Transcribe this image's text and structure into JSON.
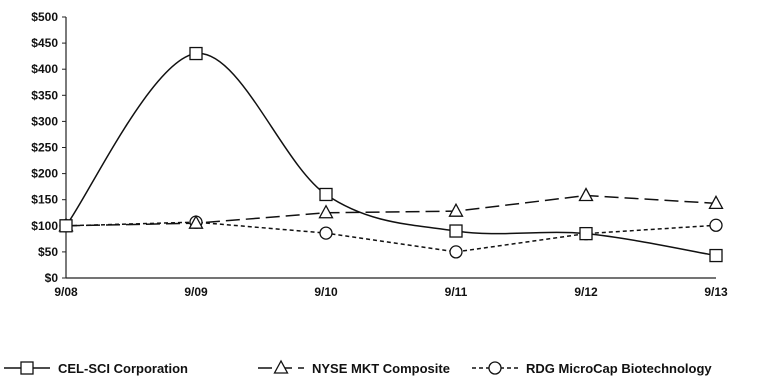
{
  "chart_data": {
    "type": "line",
    "x": [
      "9/08",
      "9/09",
      "9/10",
      "9/11",
      "9/12",
      "9/13"
    ],
    "y_ticks": [
      "$0",
      "$50",
      "$100",
      "$150",
      "$200",
      "$250",
      "$300",
      "$350",
      "$400",
      "$450",
      "$500"
    ],
    "ylim": [
      0,
      500
    ],
    "grid": false,
    "legend_position": "bottom",
    "series": [
      {
        "name": "CEL-SCI Corporation",
        "values": [
          100,
          430,
          160,
          90,
          85,
          43
        ],
        "marker": "square",
        "dash": "solid",
        "smooth": true
      },
      {
        "name": "NYSE MKT Composite",
        "values": [
          100,
          105,
          125,
          128,
          158,
          143
        ],
        "marker": "triangle",
        "dash": "long-dash",
        "smooth": false
      },
      {
        "name": "RDG MicroCap Biotechnology",
        "values": [
          100,
          107,
          86,
          50,
          85,
          101
        ],
        "marker": "circle",
        "dash": "short-dash",
        "smooth": false
      }
    ]
  }
}
